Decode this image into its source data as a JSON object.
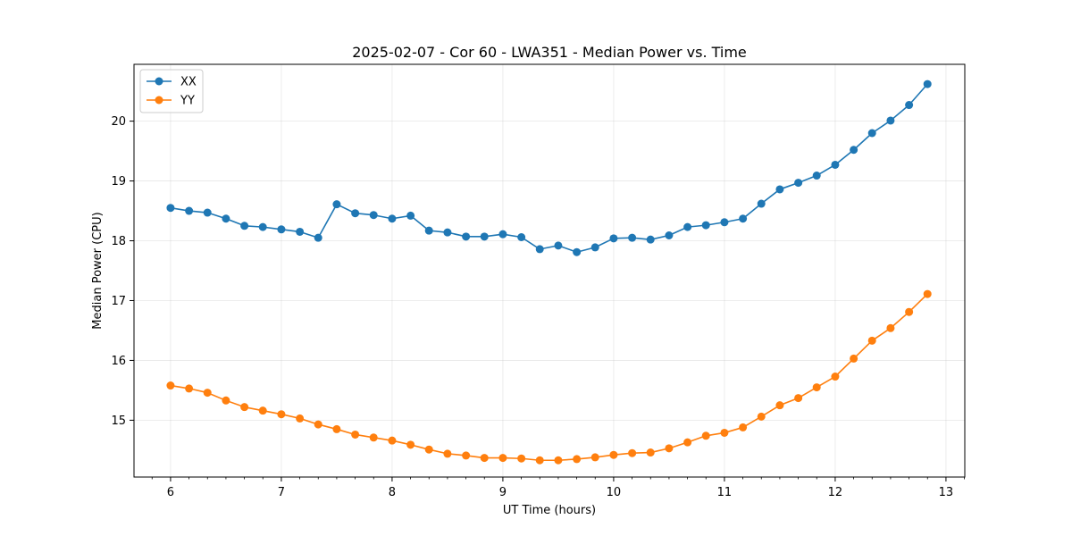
{
  "chart_data": {
    "type": "line",
    "title": "2025-02-07 - Cor 60 - LWA351 - Median Power vs. Time",
    "xlabel": "UT Time (hours)",
    "ylabel": "Median Power (CPU)",
    "xlim": [
      5.67,
      13.17
    ],
    "ylim": [
      14.05,
      20.95
    ],
    "xticks": [
      6,
      7,
      8,
      9,
      10,
      11,
      12,
      13
    ],
    "yticks": [
      15,
      16,
      17,
      18,
      19,
      20
    ],
    "grid": true,
    "legend_position": "top-left",
    "x": [
      6.0,
      6.167,
      6.333,
      6.5,
      6.667,
      6.833,
      7.0,
      7.167,
      7.333,
      7.5,
      7.667,
      7.833,
      8.0,
      8.167,
      8.333,
      8.5,
      8.667,
      8.833,
      9.0,
      9.167,
      9.333,
      9.5,
      9.667,
      9.833,
      10.0,
      10.167,
      10.333,
      10.5,
      10.667,
      10.833,
      11.0,
      11.167,
      11.333,
      11.5,
      11.667,
      11.833,
      12.0,
      12.167,
      12.333,
      12.5,
      12.667,
      12.833
    ],
    "series": [
      {
        "name": "XX",
        "color": "#1f77b4",
        "values": [
          18.55,
          18.5,
          18.47,
          18.37,
          18.25,
          18.23,
          18.19,
          18.15,
          18.05,
          18.61,
          18.46,
          18.43,
          18.37,
          18.42,
          18.17,
          18.14,
          18.07,
          18.07,
          18.11,
          18.06,
          17.86,
          17.92,
          17.81,
          17.89,
          18.04,
          18.05,
          18.02,
          18.09,
          18.23,
          18.26,
          18.31,
          18.37,
          18.62,
          18.86,
          18.97,
          19.09,
          19.27,
          19.52,
          19.8,
          20.01,
          20.27,
          20.62
        ]
      },
      {
        "name": "YY",
        "color": "#ff7f0e",
        "values": [
          15.58,
          15.53,
          15.46,
          15.33,
          15.22,
          15.16,
          15.1,
          15.03,
          14.93,
          14.85,
          14.76,
          14.71,
          14.66,
          14.59,
          14.51,
          14.44,
          14.41,
          14.37,
          14.37,
          14.36,
          14.33,
          14.33,
          14.35,
          14.38,
          14.42,
          14.45,
          14.46,
          14.53,
          14.63,
          14.74,
          14.79,
          14.88,
          15.06,
          15.25,
          15.37,
          15.55,
          15.73,
          16.03,
          16.33,
          16.54,
          16.81,
          17.11
        ]
      }
    ]
  }
}
